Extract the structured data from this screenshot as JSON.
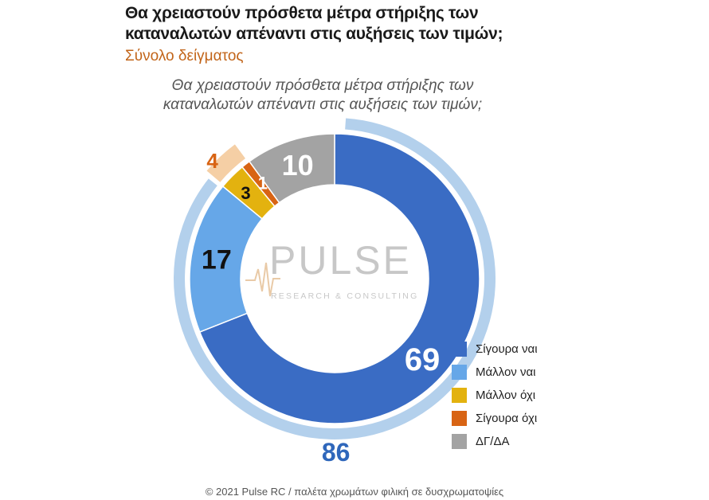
{
  "header": {
    "title": "Θα χρειαστούν πρόσθετα μέτρα στήριξης των καταναλωτών απέναντι στις αυξήσεις των τιμών;",
    "subtitle": "Σύνολο δείγματος"
  },
  "chart_data": {
    "type": "donut",
    "title": "Θα χρειαστούν πρόσθετα μέτρα στήριξης των καταναλωτών απέναντι στις αυξήσεις των τιμών;",
    "categories": [
      "Σίγουρα ναι",
      "Μάλλον ναι",
      "Μάλλον όχι",
      "Σίγουρα όχι",
      "ΔΓ/ΔΑ"
    ],
    "values": [
      69,
      17,
      3,
      1,
      10
    ],
    "colors": [
      "#3a6cc4",
      "#66a7e8",
      "#e3b20f",
      "#d86414",
      "#a3a3a3"
    ],
    "value_label_colors": [
      "#ffffff",
      "#111111",
      "#111111",
      "#ffffff",
      "#ffffff"
    ],
    "outer_ring": [
      {
        "label": "86",
        "value": 86,
        "color": "#b3d0ec",
        "label_color": "#2f67bb"
      },
      {
        "label": "4",
        "value": 4,
        "color": "#f5cfa5",
        "label_color": "#d86414"
      }
    ],
    "legend_position": "bottom-right"
  },
  "logo": {
    "name": "PULSE",
    "tagline": "RESEARCH & CONSULTING"
  },
  "footer": {
    "text": "© 2021 Pulse RC  /  παλέτα χρωμάτων φιλική σε δυσχρωματοψίες"
  }
}
